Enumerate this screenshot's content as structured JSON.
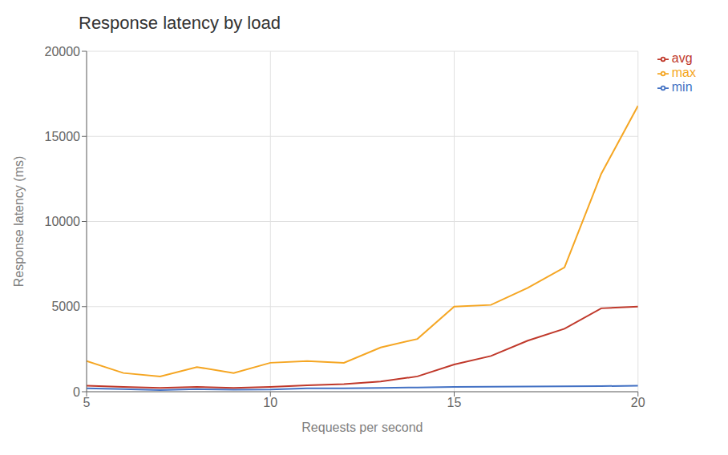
{
  "chart_data": {
    "type": "line",
    "title": "Response latency by load",
    "xlabel": "Requests per second",
    "ylabel": "Response latency (ms)",
    "x": [
      5,
      6,
      7,
      8,
      9,
      10,
      11,
      12,
      13,
      14,
      15,
      16,
      17,
      18,
      19,
      20
    ],
    "series": [
      {
        "name": "min",
        "color": "#4472c4",
        "values": [
          200,
          150,
          100,
          150,
          120,
          130,
          200,
          200,
          220,
          250,
          280,
          290,
          310,
          320,
          330,
          350
        ]
      },
      {
        "name": "avg",
        "color": "#c0392b",
        "values": [
          350,
          280,
          220,
          280,
          220,
          280,
          380,
          450,
          600,
          900,
          1600,
          2100,
          3000,
          3700,
          4900,
          5000
        ]
      },
      {
        "name": "max",
        "color": "#f5a623",
        "values": [
          1800,
          1100,
          900,
          1450,
          1100,
          1700,
          1800,
          1700,
          2600,
          3100,
          5000,
          5100,
          6100,
          7300,
          12800,
          16800
        ]
      }
    ],
    "xlim": [
      5,
      20
    ],
    "xticks": [
      5,
      10,
      15,
      20
    ],
    "ylim": [
      0,
      20000
    ],
    "yticks": [
      0,
      5000,
      10000,
      15000,
      20000
    ],
    "grid": true,
    "legend": "right"
  }
}
